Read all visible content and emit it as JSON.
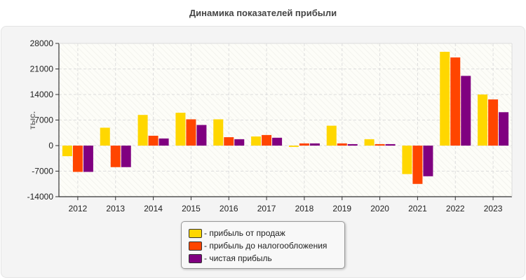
{
  "chart_data": {
    "type": "bar",
    "title": "Динамика показателей прибыли",
    "ylabel": "тыс.",
    "ylim": [
      -14000,
      28000
    ],
    "yticks": [
      -14000,
      -7000,
      0,
      7000,
      14000,
      21000,
      28000
    ],
    "grid": true,
    "legend_position": "bottom",
    "categories": [
      "2012",
      "2013",
      "2014",
      "2015",
      "2016",
      "2017",
      "2018",
      "2019",
      "2020",
      "2021",
      "2022",
      "2023"
    ],
    "series": [
      {
        "name": "- прибыль от продаж",
        "color": "#ffd700",
        "values": [
          -2900,
          4900,
          8400,
          9000,
          7200,
          2500,
          -350,
          5450,
          1750,
          -7800,
          25700,
          14000
        ]
      },
      {
        "name": "- прибыль до налогообложения",
        "color": "#ff4500",
        "values": [
          -7200,
          -5900,
          2700,
          7200,
          2300,
          2900,
          600,
          600,
          400,
          -10500,
          24150,
          12650
        ]
      },
      {
        "name": "- чистая прибыль",
        "color": "#800080",
        "values": [
          -7200,
          -5900,
          1950,
          5650,
          1750,
          2150,
          600,
          400,
          400,
          -8400,
          19100,
          9150
        ]
      }
    ]
  }
}
